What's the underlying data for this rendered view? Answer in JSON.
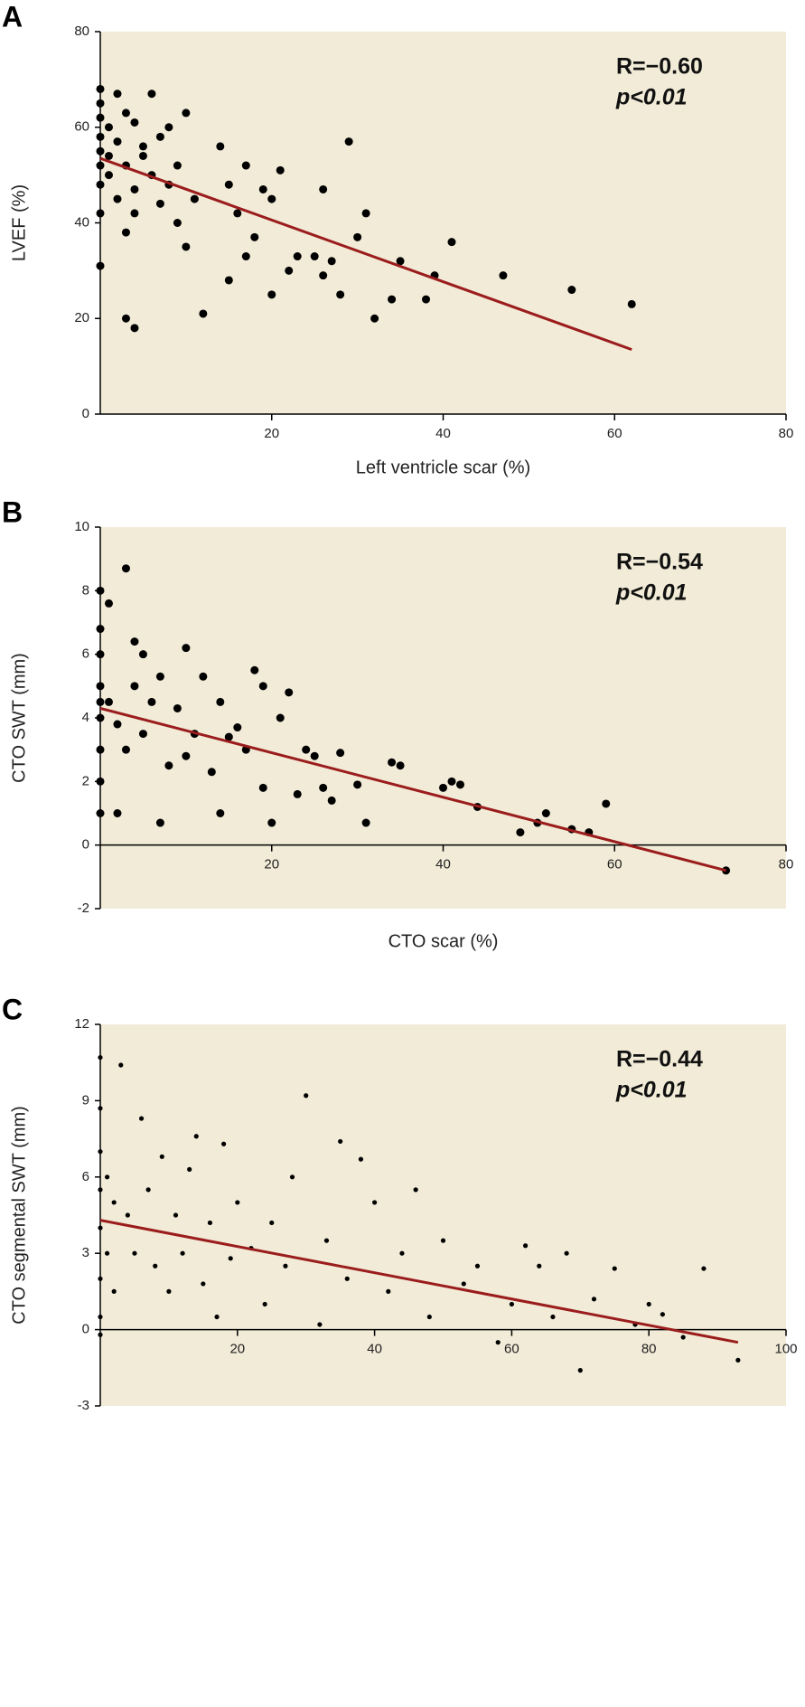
{
  "chart_data": [
    {
      "type": "scatter",
      "panel": "A",
      "ylabel": "LVEF (%)",
      "xlabel": "Left ventricle scar (%)",
      "annotations": [
        "R=−0.60",
        "p<0.01"
      ],
      "color": "#000000",
      "fit_color": "#9b1c1c",
      "x": [
        0,
        0,
        0,
        0,
        0,
        0,
        0,
        0,
        1,
        1,
        1,
        2,
        2,
        2,
        3,
        3,
        3,
        4,
        4,
        4,
        5,
        5,
        6,
        6,
        7,
        7,
        8,
        8,
        9,
        9,
        10,
        10,
        11,
        12,
        14,
        15,
        15,
        16,
        17,
        17,
        18,
        19,
        20,
        20,
        21,
        22,
        23,
        25,
        26,
        26,
        27,
        28,
        29,
        30,
        31,
        32,
        34,
        35,
        38,
        39,
        41,
        47,
        55,
        62,
        0,
        3,
        4
      ],
      "values": [
        68,
        65,
        62,
        58,
        55,
        52,
        48,
        42,
        60,
        54,
        50,
        67,
        57,
        45,
        63,
        52,
        38,
        61,
        47,
        42,
        56,
        54,
        67,
        50,
        58,
        44,
        60,
        48,
        52,
        40,
        63,
        35,
        45,
        21,
        56,
        48,
        28,
        42,
        52,
        33,
        37,
        47,
        45,
        25,
        51,
        30,
        33,
        33,
        47,
        29,
        32,
        25,
        57,
        37,
        42,
        20,
        24,
        32,
        24,
        29,
        36,
        29,
        26,
        23,
        31,
        20,
        18
      ],
      "fit": {
        "x": [
          0,
          62
        ],
        "y": [
          53.5,
          13.5
        ]
      },
      "xlim": [
        0,
        80
      ],
      "xticks": [
        20,
        40,
        60,
        80
      ],
      "ylim": [
        0,
        80
      ],
      "yticks": [
        0,
        20,
        40,
        60,
        80
      ]
    },
    {
      "type": "scatter",
      "panel": "B",
      "ylabel": "CTO SWT (mm)",
      "xlabel": "CTO scar (%)",
      "annotations": [
        "R=−0.54",
        "p<0.01"
      ],
      "color": "#000000",
      "fit_color": "#9b1c1c",
      "x": [
        0,
        0,
        0,
        0,
        0,
        0,
        0,
        0,
        0,
        1,
        1,
        2,
        2,
        3,
        3,
        4,
        4,
        5,
        5,
        6,
        7,
        7,
        8,
        9,
        10,
        10,
        11,
        12,
        13,
        14,
        14,
        15,
        16,
        17,
        18,
        19,
        19,
        20,
        21,
        22,
        23,
        24,
        25,
        26,
        27,
        28,
        30,
        31,
        34,
        35,
        40,
        41,
        42,
        44,
        49,
        51,
        52,
        55,
        57,
        59,
        73
      ],
      "values": [
        8,
        6.8,
        6,
        5,
        4.5,
        4,
        3,
        2,
        1,
        7.6,
        4.5,
        3.8,
        1,
        8.7,
        3,
        6.4,
        5,
        6,
        3.5,
        4.5,
        5.3,
        0.7,
        2.5,
        4.3,
        6.2,
        2.8,
        3.5,
        5.3,
        2.3,
        4.5,
        1,
        3.4,
        3.7,
        3,
        5.5,
        5,
        1.8,
        0.7,
        4,
        4.8,
        1.6,
        3,
        2.8,
        1.8,
        1.4,
        2.9,
        1.9,
        0.7,
        2.6,
        2.5,
        1.8,
        2,
        1.9,
        1.2,
        0.4,
        0.7,
        1,
        0.5,
        0.4,
        1.3,
        -0.8
      ],
      "fit": {
        "x": [
          0,
          73
        ],
        "y": [
          4.3,
          -0.8
        ]
      },
      "xlim": [
        0,
        80
      ],
      "xticks": [
        20,
        40,
        60,
        80
      ],
      "ylim": [
        -2,
        10
      ],
      "yticks": [
        -2,
        0,
        2,
        4,
        6,
        8,
        10
      ]
    },
    {
      "type": "scatter",
      "panel": "C",
      "ylabel": "CTO segmental SWT (mm)",
      "annotations": [
        "R=−0.44",
        "p<0.01"
      ],
      "color": "#000000",
      "fit_color": "#9b1c1c",
      "x": [
        0,
        0,
        0,
        0,
        0,
        0,
        0,
        0,
        1,
        1,
        2,
        2,
        3,
        4,
        5,
        6,
        7,
        8,
        9,
        10,
        11,
        12,
        13,
        14,
        15,
        16,
        17,
        18,
        19,
        20,
        22,
        24,
        25,
        27,
        28,
        30,
        32,
        33,
        35,
        36,
        38,
        40,
        42,
        44,
        46,
        48,
        50,
        53,
        55,
        58,
        60,
        62,
        64,
        66,
        68,
        70,
        72,
        75,
        78,
        80,
        82,
        85,
        88,
        93
      ],
      "values": [
        10.7,
        8.7,
        7,
        5.5,
        4,
        2,
        0.5,
        -0.2,
        6,
        3,
        5,
        1.5,
        10.4,
        4.5,
        3,
        8.3,
        5.5,
        2.5,
        6.8,
        1.5,
        4.5,
        3,
        6.3,
        7.6,
        1.8,
        4.2,
        0.5,
        7.3,
        2.8,
        5,
        3.2,
        1,
        4.2,
        2.5,
        6,
        9.2,
        0.2,
        3.5,
        7.4,
        2,
        6.7,
        5,
        1.5,
        3,
        5.5,
        0.5,
        3.5,
        1.8,
        2.5,
        -0.5,
        1,
        3.3,
        2.5,
        0.5,
        3,
        -1.6,
        1.2,
        2.4,
        0.2,
        1,
        0.6,
        -0.3,
        2.4,
        -1.2
      ],
      "fit": {
        "x": [
          0,
          93
        ],
        "y": [
          4.3,
          -0.5
        ]
      },
      "xlim": [
        0,
        100
      ],
      "xticks": [
        20,
        40,
        60,
        80,
        100
      ],
      "ylim": [
        -3,
        12
      ],
      "yticks": [
        -3,
        0,
        3,
        6,
        9,
        12
      ]
    }
  ]
}
